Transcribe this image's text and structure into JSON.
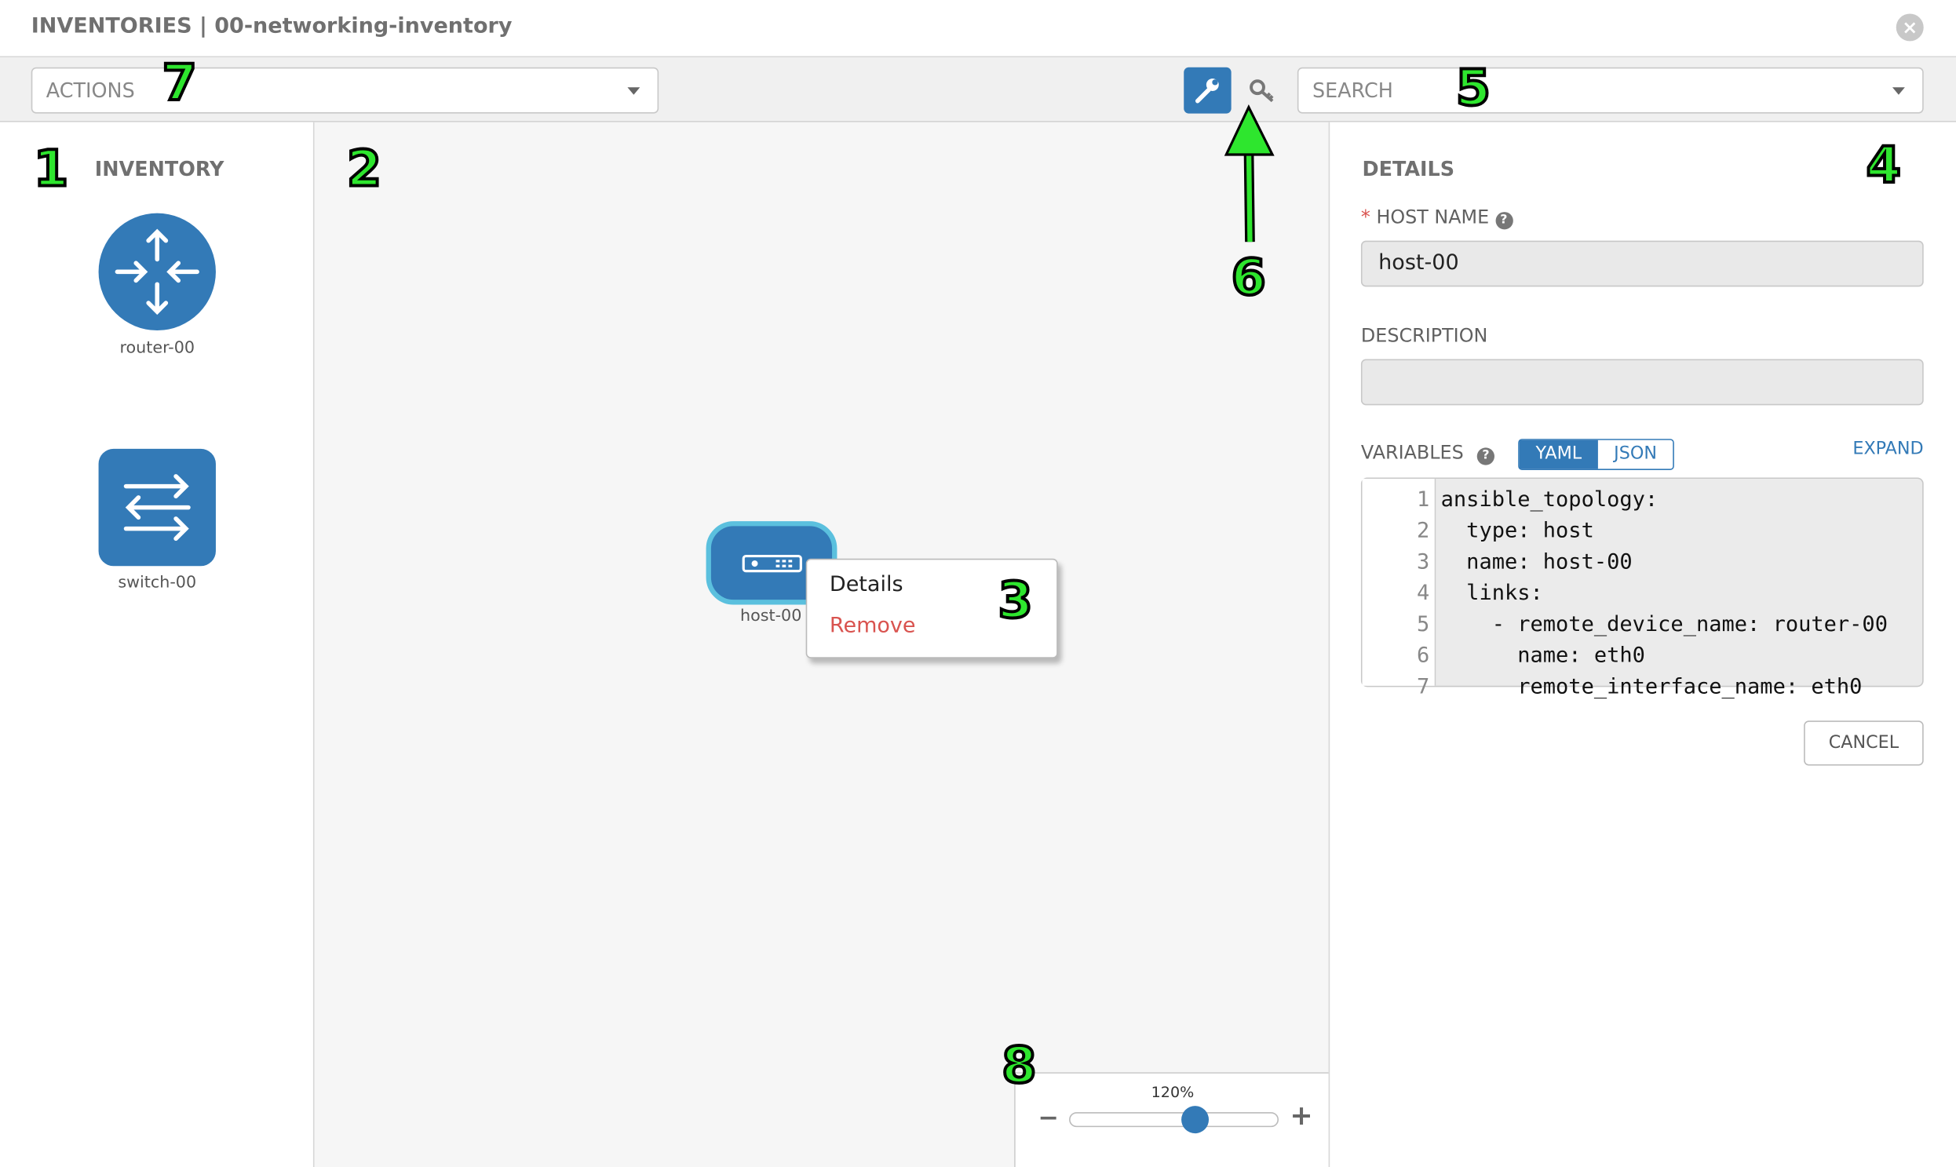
{
  "header": {
    "title": "INVENTORIES | 00-networking-inventory",
    "close_icon": "close-circle-icon"
  },
  "toolbar": {
    "actions_placeholder": "ACTIONS",
    "search_placeholder": "SEARCH",
    "wrench_icon": "wrench-icon",
    "key_icon": "key-icon"
  },
  "inventory": {
    "title": "INVENTORY",
    "items": [
      {
        "label": "router-00",
        "icon": "router-icon"
      },
      {
        "label": "switch-00",
        "icon": "switch-icon"
      }
    ]
  },
  "canvas": {
    "node": {
      "label": "host-00",
      "icon": "host-icon"
    },
    "context_menu": {
      "details": "Details",
      "remove": "Remove"
    },
    "zoom": {
      "level": "120%",
      "value_percent": 120,
      "minus": "−",
      "plus": "+"
    }
  },
  "details": {
    "title": "DETAILS",
    "required_mark": "*",
    "host_name_label": "HOST NAME",
    "host_name_value": "host-00",
    "description_label": "DESCRIPTION",
    "description_value": "",
    "variables_label": "VARIABLES",
    "yaml": "YAML",
    "json": "JSON",
    "expand": "EXPAND",
    "cancel": "CANCEL",
    "code_lines": [
      {
        "n": "1",
        "t": "ansible_topology:"
      },
      {
        "n": "2",
        "t": "  type: host"
      },
      {
        "n": "3",
        "t": "  name: host-00"
      },
      {
        "n": "4",
        "t": "  links:"
      },
      {
        "n": "5",
        "t": "    - remote_device_name: router-00"
      },
      {
        "n": "6",
        "t": "      name: eth0"
      },
      {
        "n": "7",
        "t": "      remote_interface_name: eth0"
      }
    ]
  },
  "annotations": [
    "1",
    "2",
    "3",
    "4",
    "5",
    "6",
    "7",
    "8"
  ],
  "colors": {
    "primary": "#337ab7",
    "danger": "#d9534f",
    "node_border": "#5bc0de",
    "annotation": "#2ee62e"
  }
}
